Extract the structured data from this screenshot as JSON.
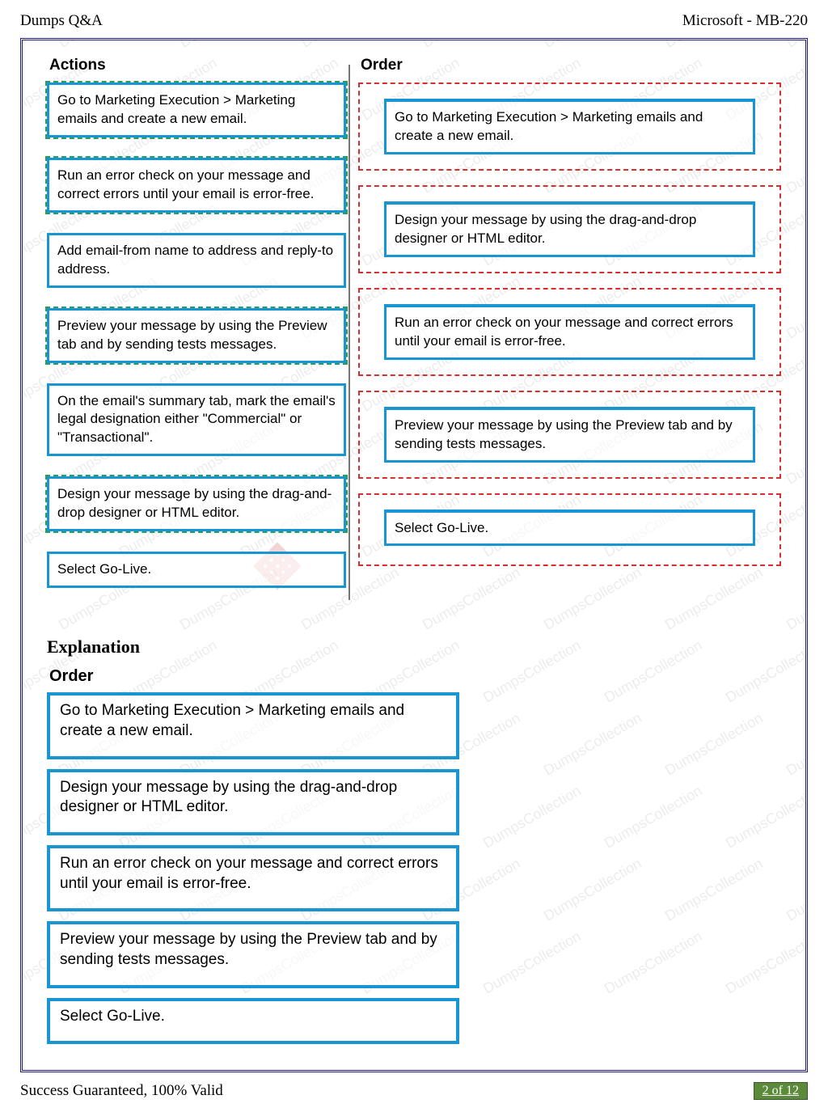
{
  "header": {
    "left": "Dumps Q&A",
    "right": "Microsoft - MB-220"
  },
  "watermark": "DumpsCollection",
  "actions": {
    "title": "Actions",
    "items": [
      "Go to Marketing Execution > Marketing emails and create a new email.",
      "Run an error check on your message and correct errors until your email is  error-free.",
      "Add email-from name to address and reply-to address.",
      "Preview your message by using the Preview tab and by sending tests messages.",
      "On the email's summary tab, mark the email's legal designation either  \"Commercial\" or \"Transactional\".",
      "Design your message by using the drag-and-drop designer or HTML editor.",
      "Select Go-Live."
    ]
  },
  "order": {
    "title": "Order",
    "items": [
      "Go to Marketing Execution > Marketing emails and create a new email.",
      "Design your message by using the drag-and-drop designer or HTML editor.",
      "Run an error check on your message and correct errors until your email is  error-free.",
      "Preview your message by using the Preview tab and by sending tests messages.",
      "Select Go-Live."
    ]
  },
  "explanation": {
    "title": "Explanation",
    "orderTitle": "Order",
    "items": [
      "Go to Marketing Execution > Marketing emails and create a new email.",
      "Design your message by using the drag-and-drop designer or HTML editor.",
      "Run an error check on your message and correct errors until your email is  error-free.",
      "Preview your message by using the Preview tab and by sending tests messages.",
      "Select Go-Live."
    ]
  },
  "footer": {
    "left": "Success Guaranteed, 100% Valid",
    "page": "2 of 12"
  },
  "colors": {
    "frame_border": "#1a1a8a",
    "box_border": "#1896d3",
    "dash_red": "#d43030",
    "dash_green": "#2a9d5a",
    "badge_bg": "#5a8a3a"
  }
}
